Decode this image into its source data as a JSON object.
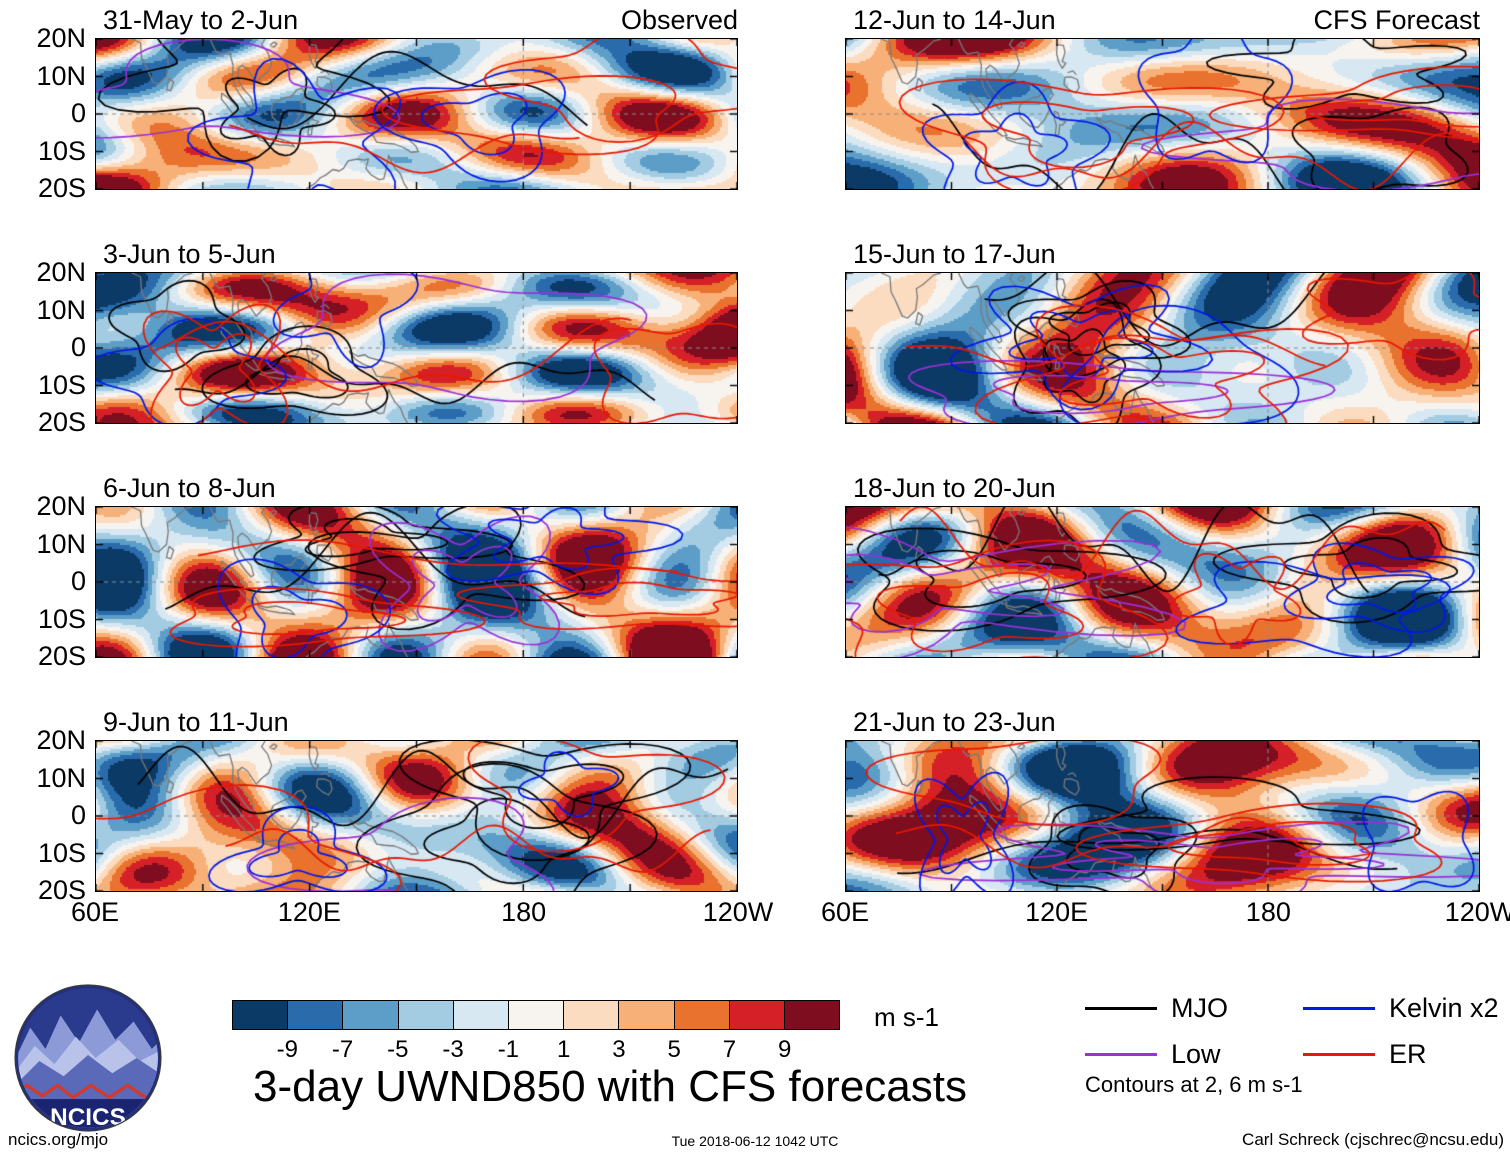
{
  "header": {
    "left_group": "Observed",
    "right_group": "CFS Forecast"
  },
  "chart_data": {
    "type": "heatmap",
    "title": "3-day UWND850 with CFS forecasts",
    "units": "m s-1",
    "x_ticks": [
      "60E",
      "120E",
      "180",
      "120W"
    ],
    "y_ticks": [
      "20N",
      "10N",
      "0",
      "10S",
      "20S"
    ],
    "colorbar_levels": [
      -9,
      -7,
      -5,
      -3,
      -1,
      1,
      3,
      5,
      7,
      9
    ],
    "colorbar_labels": [
      "-9",
      "-7",
      "-5",
      "-3",
      "-1",
      "1",
      "3",
      "5",
      "7",
      "9"
    ],
    "colorbar_colors": [
      "#0b3a67",
      "#2a6bac",
      "#5d9ec9",
      "#a3cce2",
      "#d7e8f3",
      "#f7f4f0",
      "#fbdcc0",
      "#f7b077",
      "#e8722e",
      "#d62027",
      "#7e0d1f"
    ],
    "panels": [
      {
        "title": "31-May to 2-Jun",
        "group": "Observed"
      },
      {
        "title": "3-Jun to 5-Jun",
        "group": "Observed"
      },
      {
        "title": "6-Jun to 8-Jun",
        "group": "Observed"
      },
      {
        "title": "9-Jun to 11-Jun",
        "group": "Observed"
      },
      {
        "title": "12-Jun to 14-Jun",
        "group": "CFS Forecast"
      },
      {
        "title": "15-Jun to 17-Jun",
        "group": "CFS Forecast"
      },
      {
        "title": "18-Jun to 20-Jun",
        "group": "CFS Forecast"
      },
      {
        "title": "21-Jun to 23-Jun",
        "group": "CFS Forecast"
      }
    ],
    "legend": [
      {
        "label": "MJO",
        "color": "#000000"
      },
      {
        "label": "Low",
        "color": "#9b30d8"
      },
      {
        "label": "Kelvin x2",
        "color": "#0018e8"
      },
      {
        "label": "ER",
        "color": "#e81800"
      }
    ],
    "contours_note": "Contours at 2, 6 m s-1"
  },
  "logo": {
    "text": "NCICS"
  },
  "footer": {
    "left": "ncics.org/mjo",
    "center": "Tue 2018-06-12 1042 UTC",
    "right": "Carl Schreck (cjschrec@ncsu.edu)"
  }
}
